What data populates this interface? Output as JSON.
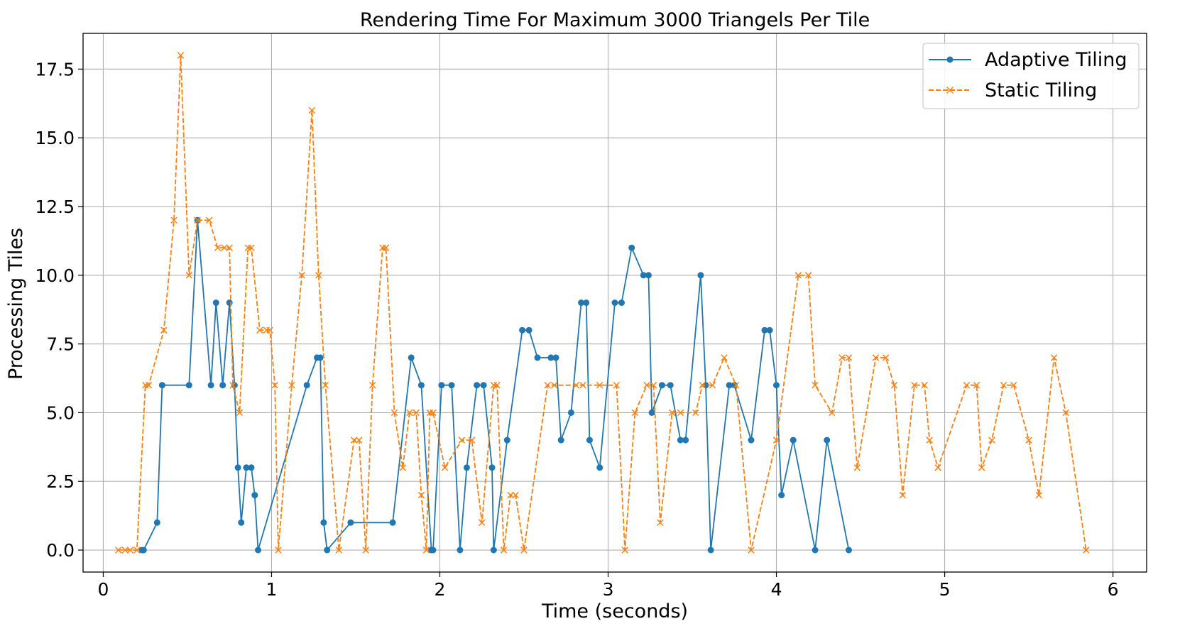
{
  "chart_data": {
    "type": "line",
    "title": "Rendering Time For Maximum 3000 Triangels Per Tile",
    "xlabel": "Time (seconds)",
    "ylabel": "Processing Tiles",
    "xlim": [
      -0.12,
      6.2
    ],
    "ylim": [
      -0.8,
      18.8
    ],
    "xticks": [
      0,
      1,
      2,
      3,
      4,
      5,
      6
    ],
    "xtick_labels": [
      "0",
      "1",
      "2",
      "3",
      "4",
      "5",
      "6"
    ],
    "yticks": [
      0,
      2.5,
      5,
      7.5,
      10,
      12.5,
      15,
      17.5
    ],
    "ytick_labels": [
      "0.0",
      "2.5",
      "5.0",
      "7.5",
      "10.0",
      "12.5",
      "15.0",
      "17.5"
    ],
    "grid": true,
    "legend_position": "top-right",
    "series": [
      {
        "name": "Adaptive Tiling",
        "color": "#1f77b4",
        "line_style": "solid",
        "marker": "circle",
        "x": [
          0.23,
          0.24,
          0.32,
          0.35,
          0.51,
          0.56,
          0.64,
          0.67,
          0.71,
          0.75,
          0.78,
          0.8,
          0.82,
          0.85,
          0.88,
          0.9,
          0.92,
          1.21,
          1.27,
          1.29,
          1.31,
          1.33,
          1.47,
          1.72,
          1.83,
          1.89,
          1.95,
          1.96,
          2.01,
          2.07,
          2.12,
          2.16,
          2.22,
          2.26,
          2.31,
          2.32,
          2.4,
          2.49,
          2.53,
          2.58,
          2.66,
          2.69,
          2.72,
          2.78,
          2.84,
          2.87,
          2.89,
          2.95,
          3.04,
          3.08,
          3.14,
          3.21,
          3.24,
          3.26,
          3.32,
          3.37,
          3.43,
          3.46,
          3.55,
          3.58,
          3.61,
          3.72,
          3.75,
          3.85,
          3.93,
          3.96,
          4.0,
          4.03,
          4.1,
          4.23,
          4.3,
          4.43
        ],
        "y": [
          0,
          0,
          1,
          6,
          6,
          12,
          6,
          9,
          6,
          9,
          6,
          3,
          1,
          3,
          3,
          2,
          0,
          6,
          7,
          7,
          1,
          0,
          1,
          1,
          7,
          6,
          0,
          0,
          6,
          6,
          0,
          3,
          6,
          6,
          3,
          0,
          4,
          8,
          8,
          7,
          7,
          7,
          4,
          5,
          9,
          9,
          4,
          3,
          9,
          9,
          11,
          10,
          10,
          5,
          6,
          6,
          4,
          4,
          10,
          6,
          0,
          6,
          6,
          4,
          8,
          8,
          6,
          2,
          4,
          0,
          4,
          0
        ]
      },
      {
        "name": "Static Tiling",
        "color": "#ff7f0e",
        "line_style": "dashed",
        "marker": "x",
        "x": [
          0.09,
          0.13,
          0.16,
          0.2,
          0.25,
          0.27,
          0.36,
          0.42,
          0.46,
          0.51,
          0.56,
          0.63,
          0.68,
          0.72,
          0.75,
          0.77,
          0.81,
          0.86,
          0.88,
          0.93,
          0.97,
          0.99,
          1.02,
          1.04,
          1.12,
          1.18,
          1.24,
          1.28,
          1.32,
          1.4,
          1.49,
          1.52,
          1.56,
          1.6,
          1.66,
          1.68,
          1.73,
          1.78,
          1.82,
          1.86,
          1.89,
          1.92,
          1.94,
          1.96,
          2.03,
          2.13,
          2.19,
          2.25,
          2.32,
          2.34,
          2.38,
          2.42,
          2.45,
          2.5,
          2.64,
          2.68,
          2.81,
          2.85,
          2.95,
          3.05,
          3.1,
          3.16,
          3.23,
          3.27,
          3.31,
          3.38,
          3.43,
          3.52,
          3.56,
          3.62,
          3.69,
          3.76,
          3.85,
          4.0,
          4.13,
          4.19,
          4.23,
          4.33,
          4.39,
          4.43,
          4.48,
          4.59,
          4.65,
          4.7,
          4.75,
          4.82,
          4.88,
          4.91,
          4.96,
          5.13,
          5.19,
          5.22,
          5.28,
          5.35,
          5.41,
          5.5,
          5.56,
          5.65,
          5.72,
          5.84
        ],
        "y": [
          0,
          0,
          0,
          0,
          6,
          6,
          8,
          12,
          18,
          10,
          12,
          12,
          11,
          11,
          11,
          6,
          5,
          11,
          11,
          8,
          8,
          8,
          6,
          0,
          6,
          10,
          16,
          10,
          6,
          0,
          4,
          4,
          0,
          6,
          11,
          11,
          5,
          3,
          5,
          5,
          2,
          0,
          5,
          5,
          3,
          4,
          4,
          1,
          6,
          6,
          0,
          2,
          2,
          0,
          6,
          6,
          6,
          6,
          6,
          6,
          0,
          5,
          6,
          6,
          1,
          5,
          5,
          5,
          6,
          6,
          7,
          6,
          0,
          4,
          10,
          10,
          6,
          5,
          7,
          7,
          3,
          7,
          7,
          6,
          2,
          6,
          6,
          4,
          3,
          6,
          6,
          3,
          4,
          6,
          6,
          4,
          2,
          7,
          5,
          0
        ]
      }
    ]
  }
}
